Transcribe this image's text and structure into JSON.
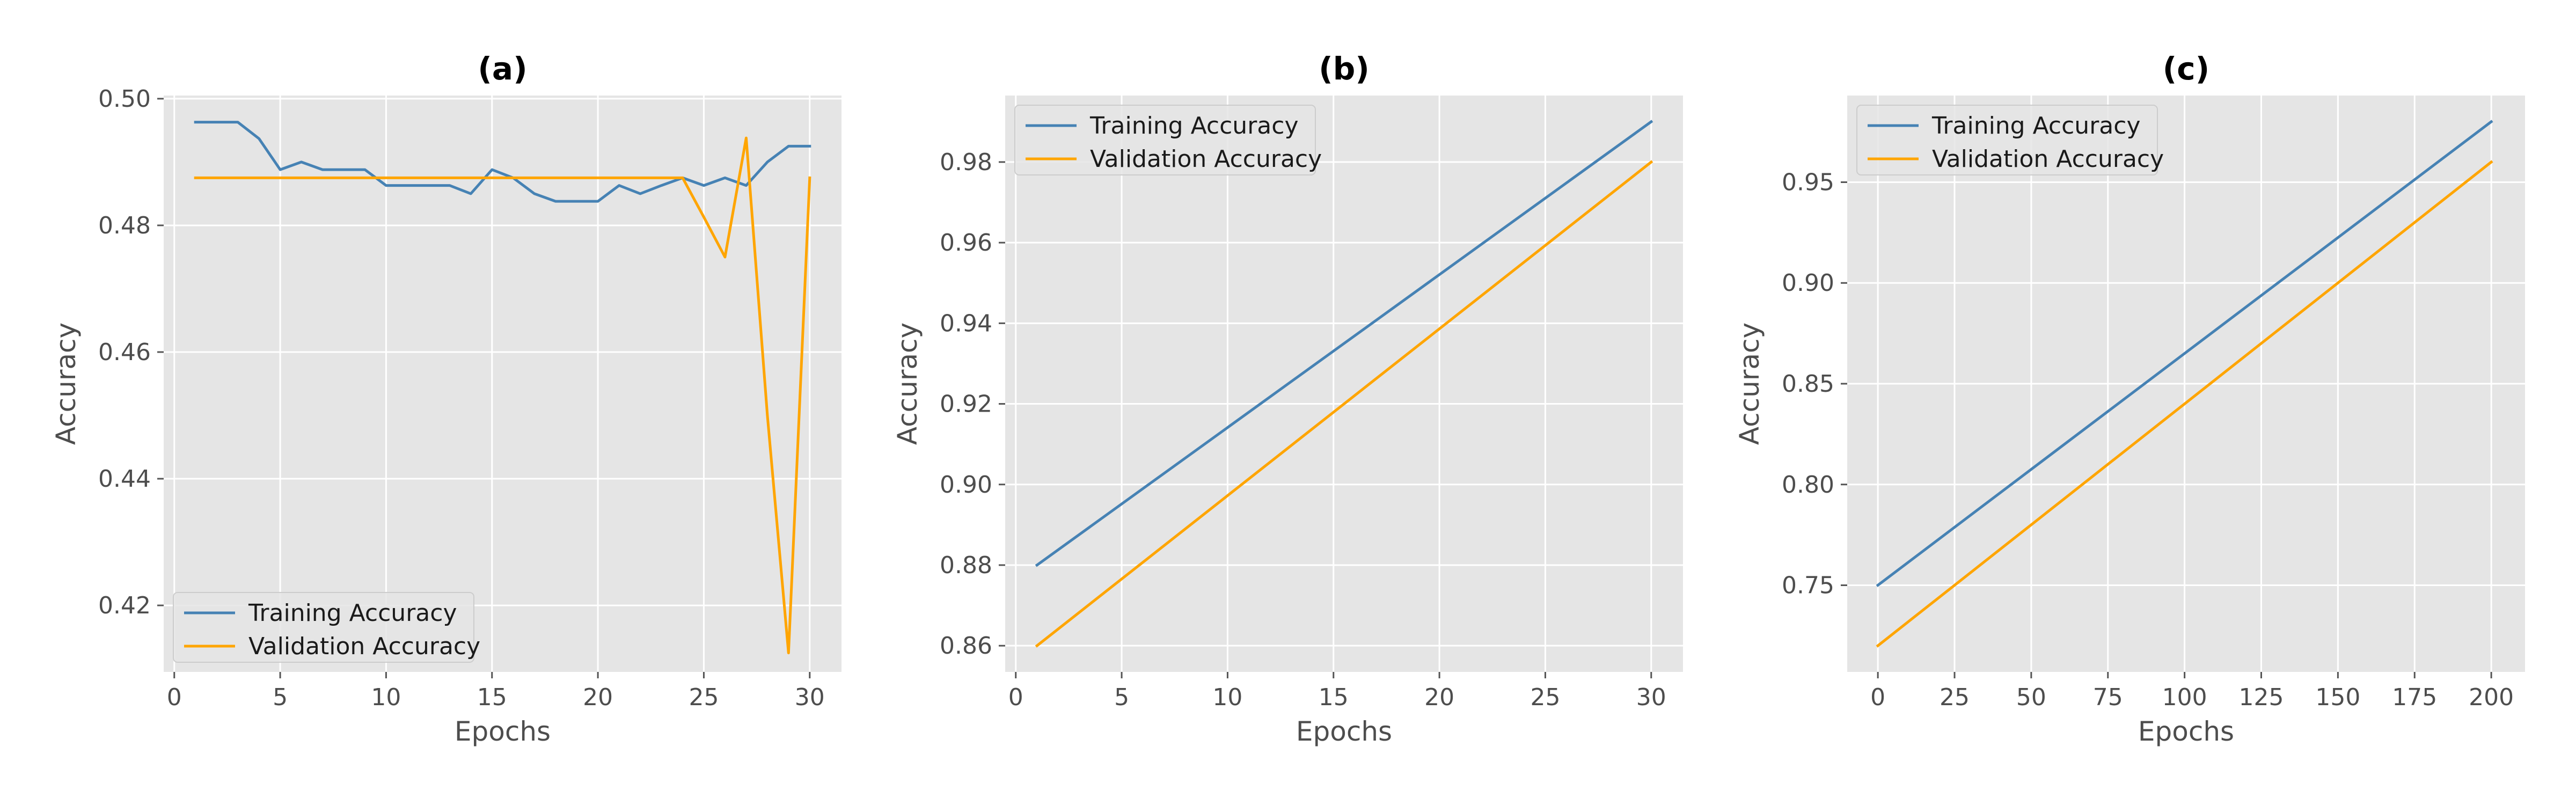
{
  "chart_data": [
    {
      "type": "line",
      "title": "(a)",
      "xlabel": "Epochs",
      "ylabel": "Accuracy",
      "xlim": [
        -0.5,
        31.5
      ],
      "ylim": [
        0.4095,
        0.5005
      ],
      "xticks": [
        0,
        5,
        10,
        15,
        20,
        25,
        30
      ],
      "xtick_labels": [
        "0",
        "5",
        "10",
        "15",
        "20",
        "25",
        "30"
      ],
      "yticks": [
        0.42,
        0.44,
        0.46,
        0.48,
        0.5
      ],
      "ytick_labels": [
        "0.42",
        "0.44",
        "0.46",
        "0.48",
        "0.50"
      ],
      "grid": true,
      "legend_position": "lower-left",
      "series": [
        {
          "name": "Training Accuracy",
          "color": "#4682b4",
          "x": [
            1,
            2,
            3,
            4,
            5,
            6,
            7,
            8,
            9,
            10,
            11,
            12,
            13,
            14,
            15,
            16,
            17,
            18,
            19,
            20,
            21,
            22,
            23,
            24,
            25,
            26,
            27,
            28,
            29,
            30
          ],
          "y": [
            0.4963,
            0.4963,
            0.4963,
            0.4937,
            0.4888,
            0.49,
            0.4888,
            0.4888,
            0.4888,
            0.4863,
            0.4863,
            0.4863,
            0.4863,
            0.485,
            0.4888,
            0.4875,
            0.485,
            0.4838,
            0.4838,
            0.4838,
            0.4863,
            0.485,
            0.4863,
            0.4875,
            0.4863,
            0.4875,
            0.4863,
            0.49,
            0.4925,
            0.4925
          ]
        },
        {
          "name": "Validation Accuracy",
          "color": "#ffa500",
          "x": [
            1,
            2,
            3,
            4,
            5,
            6,
            7,
            8,
            9,
            10,
            11,
            12,
            13,
            14,
            15,
            16,
            17,
            18,
            19,
            20,
            21,
            22,
            23,
            24,
            25,
            26,
            27,
            28,
            29,
            30
          ],
          "y": [
            0.4875,
            0.4875,
            0.4875,
            0.4875,
            0.4875,
            0.4875,
            0.4875,
            0.4875,
            0.4875,
            0.4875,
            0.4875,
            0.4875,
            0.4875,
            0.4875,
            0.4875,
            0.4875,
            0.4875,
            0.4875,
            0.4875,
            0.4875,
            0.4875,
            0.4875,
            0.4875,
            0.4875,
            0.4813,
            0.475,
            0.4938,
            0.45,
            0.4125,
            0.4875
          ]
        }
      ]
    },
    {
      "type": "line",
      "title": "(b)",
      "xlabel": "Epochs",
      "ylabel": "Accuracy",
      "xlim": [
        -0.5,
        31.5
      ],
      "ylim": [
        0.8535,
        0.9965
      ],
      "xticks": [
        0,
        5,
        10,
        15,
        20,
        25,
        30
      ],
      "xtick_labels": [
        "0",
        "5",
        "10",
        "15",
        "20",
        "25",
        "30"
      ],
      "yticks": [
        0.86,
        0.88,
        0.9,
        0.92,
        0.94,
        0.96,
        0.98
      ],
      "ytick_labels": [
        "0.86",
        "0.88",
        "0.90",
        "0.92",
        "0.94",
        "0.96",
        "0.98"
      ],
      "grid": true,
      "legend_position": "upper-left",
      "series": [
        {
          "name": "Training Accuracy",
          "color": "#4682b4",
          "x": [
            1,
            30
          ],
          "y": [
            0.88,
            0.99
          ]
        },
        {
          "name": "Validation Accuracy",
          "color": "#ffa500",
          "x": [
            1,
            30
          ],
          "y": [
            0.86,
            0.98
          ]
        }
      ]
    },
    {
      "type": "line",
      "title": "(c)",
      "xlabel": "Epochs",
      "ylabel": "Accuracy",
      "xlim": [
        -10,
        211
      ],
      "ylim": [
        0.707,
        0.993
      ],
      "xticks": [
        0,
        25,
        50,
        75,
        100,
        125,
        150,
        175,
        200
      ],
      "xtick_labels": [
        "0",
        "25",
        "50",
        "75",
        "100",
        "125",
        "150",
        "175",
        "200"
      ],
      "yticks": [
        0.75,
        0.8,
        0.85,
        0.9,
        0.95
      ],
      "ytick_labels": [
        "0.75",
        "0.80",
        "0.85",
        "0.90",
        "0.95"
      ],
      "grid": true,
      "legend_position": "upper-left",
      "series": [
        {
          "name": "Training Accuracy",
          "color": "#4682b4",
          "x": [
            0,
            200
          ],
          "y": [
            0.75,
            0.98
          ]
        },
        {
          "name": "Validation Accuracy",
          "color": "#ffa500",
          "x": [
            0,
            200
          ],
          "y": [
            0.72,
            0.96
          ]
        }
      ]
    }
  ]
}
